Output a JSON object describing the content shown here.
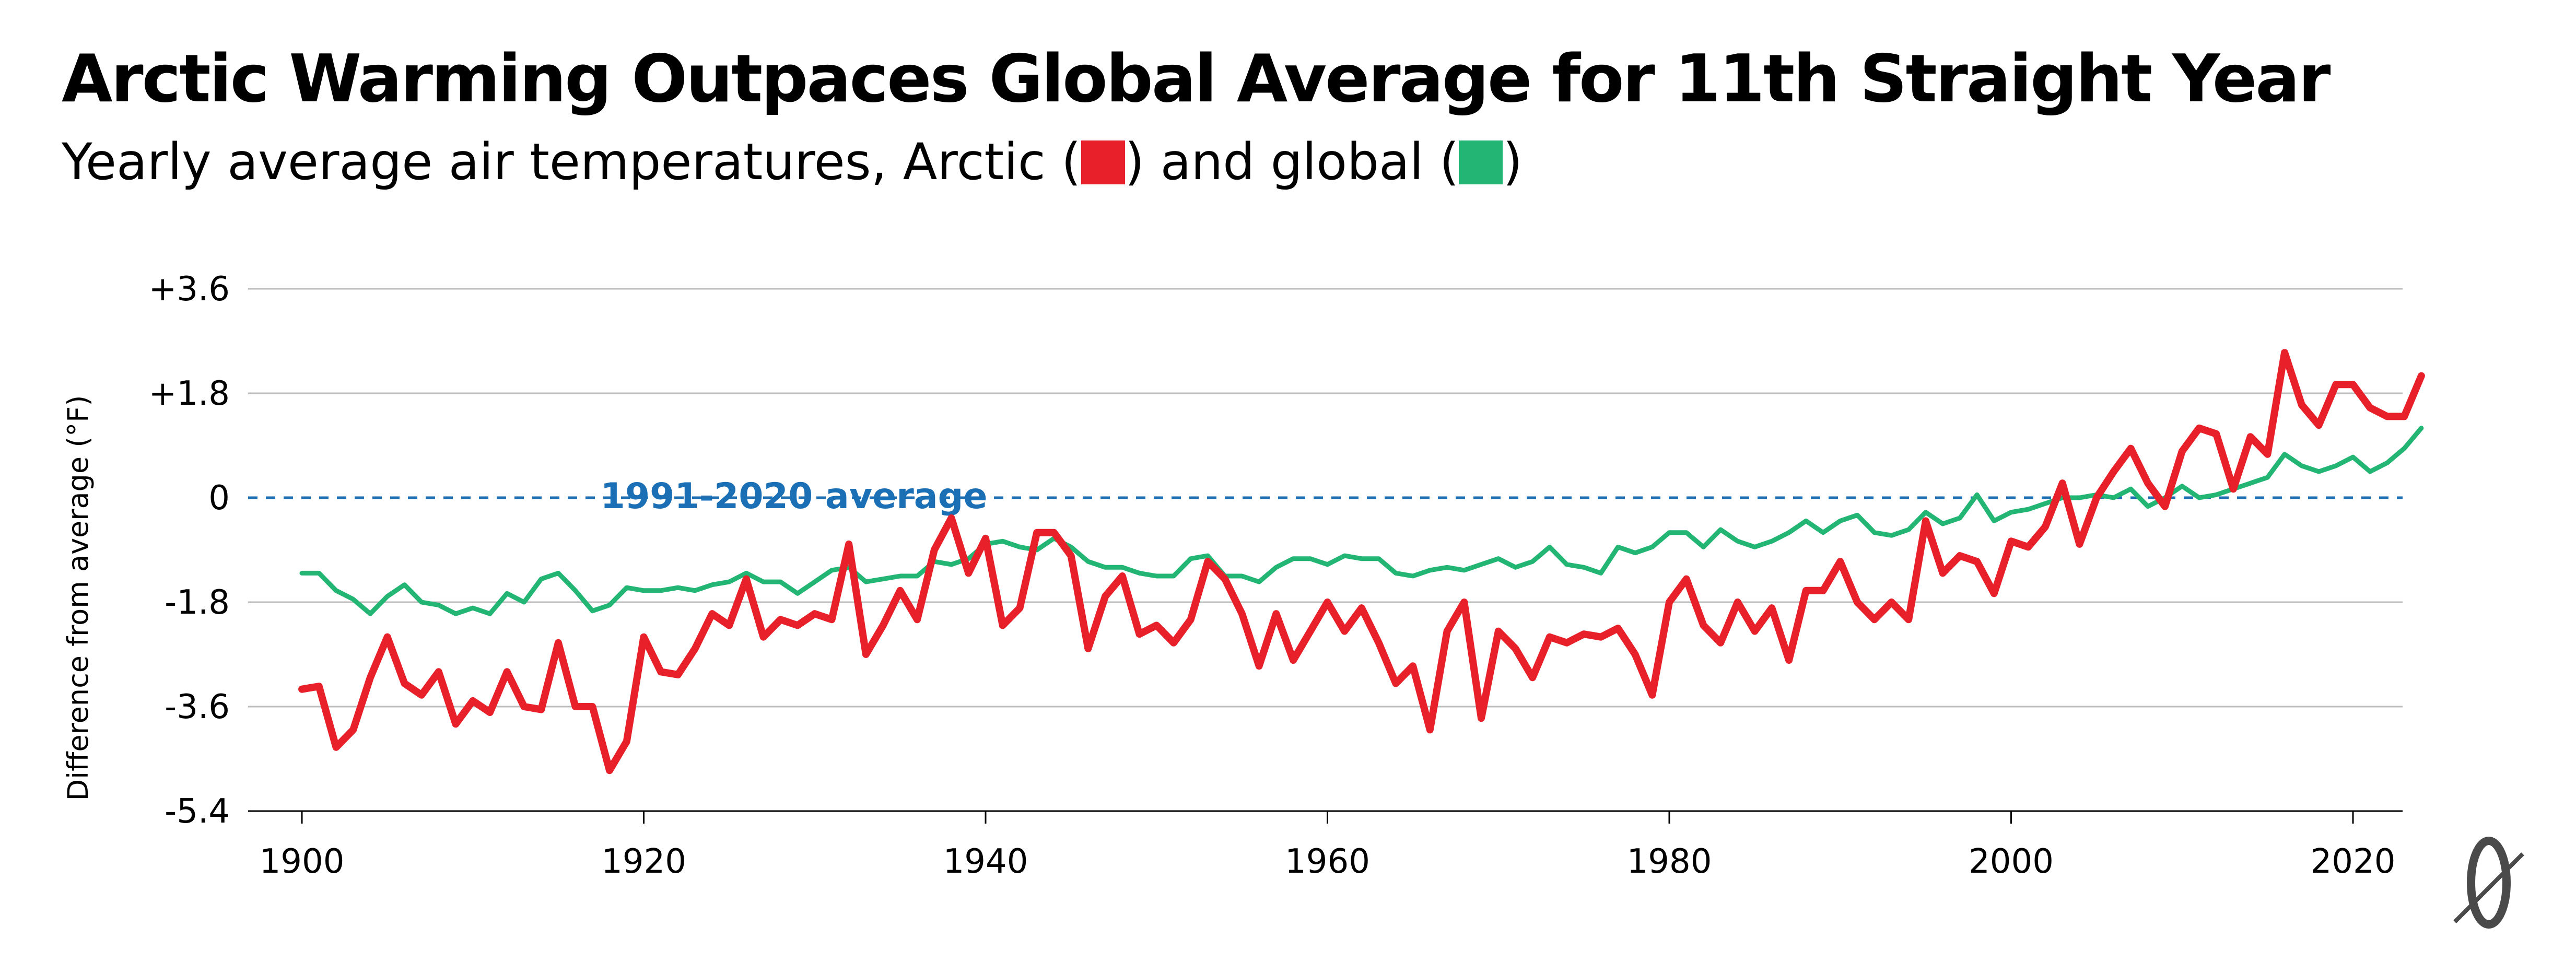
{
  "title": "Arctic Warming Outpaces Global Average for 11th Straight Year",
  "subtitle": {
    "before": "Yearly average air temperatures, Arctic (",
    "middle": ") and global (",
    "after": ")"
  },
  "colors": {
    "arctic": "#e8202a",
    "global": "#22b573",
    "reference": "#1b6fb4",
    "grid": "#bdbdbd"
  },
  "chart_data": {
    "type": "line",
    "ylabel": "Difference from average (°F)",
    "xlim": [
      1900,
      2024
    ],
    "ylim": [
      -5.4,
      3.6
    ],
    "x_ticks": [
      1900,
      1920,
      1940,
      1960,
      1980,
      2000,
      2020
    ],
    "y_ticks": [
      {
        "value": 3.6,
        "label": "+3.6"
      },
      {
        "value": 1.8,
        "label": "+1.8"
      },
      {
        "value": 0,
        "label": "0"
      },
      {
        "value": -1.8,
        "label": "-1.8"
      },
      {
        "value": -3.6,
        "label": "-3.6"
      },
      {
        "value": -5.4,
        "label": "-5.4"
      }
    ],
    "grid": "horizontal",
    "reference_line": {
      "value": 0,
      "label": "1991-2020 average"
    },
    "series": [
      {
        "key": "arctic",
        "start": 1900,
        "values": [
          -3.3,
          -3.25,
          -4.3,
          -4.0,
          -3.1,
          -2.4,
          -3.2,
          -3.4,
          -3.0,
          -3.9,
          -3.5,
          -3.7,
          -3.0,
          -3.6,
          -3.65,
          -2.5,
          -3.6,
          -3.6,
          -4.7,
          -4.2,
          -2.4,
          -3.0,
          -3.05,
          -2.6,
          -2.0,
          -2.2,
          -1.4,
          -2.4,
          -2.1,
          -2.2,
          -2.0,
          -2.1,
          -0.8,
          -2.7,
          -2.2,
          -1.6,
          -2.1,
          -0.9,
          -0.35,
          -1.3,
          -0.7,
          -2.2,
          -1.9,
          -0.6,
          -0.6,
          -1.0,
          -2.6,
          -1.7,
          -1.35,
          -2.35,
          -2.2,
          -2.5,
          -2.1,
          -1.1,
          -1.4,
          -2.0,
          -2.9,
          -2.0,
          -2.8,
          -2.3,
          -1.8,
          -2.3,
          -1.9,
          -2.5,
          -3.2,
          -2.9,
          -4.0,
          -2.3,
          -1.8,
          -3.8,
          -2.3,
          -2.6,
          -3.1,
          -2.4,
          -2.5,
          -2.35,
          -2.4,
          -2.25,
          -2.7,
          -3.4,
          -1.8,
          -1.4,
          -2.2,
          -2.5,
          -1.8,
          -2.3,
          -1.9,
          -2.8,
          -1.6,
          -1.6,
          -1.1,
          -1.8,
          -2.1,
          -1.8,
          -2.1,
          -0.4,
          -1.3,
          -1.0,
          -1.1,
          -1.65,
          -0.75,
          -0.85,
          -0.5,
          0.25,
          -0.8,
          0.0,
          0.45,
          0.85,
          0.25,
          -0.15,
          0.8,
          1.2,
          1.1,
          0.15,
          1.05,
          0.75,
          2.5,
          1.6,
          1.25,
          1.95,
          1.95,
          1.55,
          1.4,
          1.4,
          2.1
        ]
      },
      {
        "key": "global",
        "start": 1900,
        "values": [
          -1.3,
          -1.3,
          -1.6,
          -1.75,
          -2.0,
          -1.7,
          -1.5,
          -1.8,
          -1.85,
          -2.0,
          -1.9,
          -2.0,
          -1.65,
          -1.8,
          -1.4,
          -1.3,
          -1.6,
          -1.95,
          -1.85,
          -1.55,
          -1.6,
          -1.6,
          -1.55,
          -1.6,
          -1.5,
          -1.45,
          -1.3,
          -1.45,
          -1.45,
          -1.65,
          -1.45,
          -1.25,
          -1.2,
          -1.45,
          -1.4,
          -1.35,
          -1.35,
          -1.1,
          -1.15,
          -1.05,
          -0.8,
          -0.75,
          -0.85,
          -0.9,
          -0.7,
          -0.85,
          -1.1,
          -1.2,
          -1.2,
          -1.3,
          -1.35,
          -1.35,
          -1.05,
          -1.0,
          -1.35,
          -1.35,
          -1.45,
          -1.2,
          -1.05,
          -1.05,
          -1.15,
          -1.0,
          -1.05,
          -1.05,
          -1.3,
          -1.35,
          -1.25,
          -1.2,
          -1.25,
          -1.15,
          -1.05,
          -1.2,
          -1.1,
          -0.85,
          -1.15,
          -1.2,
          -1.3,
          -0.85,
          -0.95,
          -0.85,
          -0.6,
          -0.6,
          -0.85,
          -0.55,
          -0.75,
          -0.85,
          -0.75,
          -0.6,
          -0.4,
          -0.6,
          -0.4,
          -0.3,
          -0.6,
          -0.65,
          -0.55,
          -0.25,
          -0.45,
          -0.35,
          0.05,
          -0.4,
          -0.25,
          -0.2,
          -0.1,
          0.0,
          0.0,
          0.05,
          0.0,
          0.15,
          -0.15,
          0.0,
          0.2,
          0.0,
          0.05,
          0.15,
          0.25,
          0.35,
          0.75,
          0.55,
          0.45,
          0.55,
          0.7,
          0.45,
          0.6,
          0.85,
          1.2
        ]
      }
    ]
  }
}
